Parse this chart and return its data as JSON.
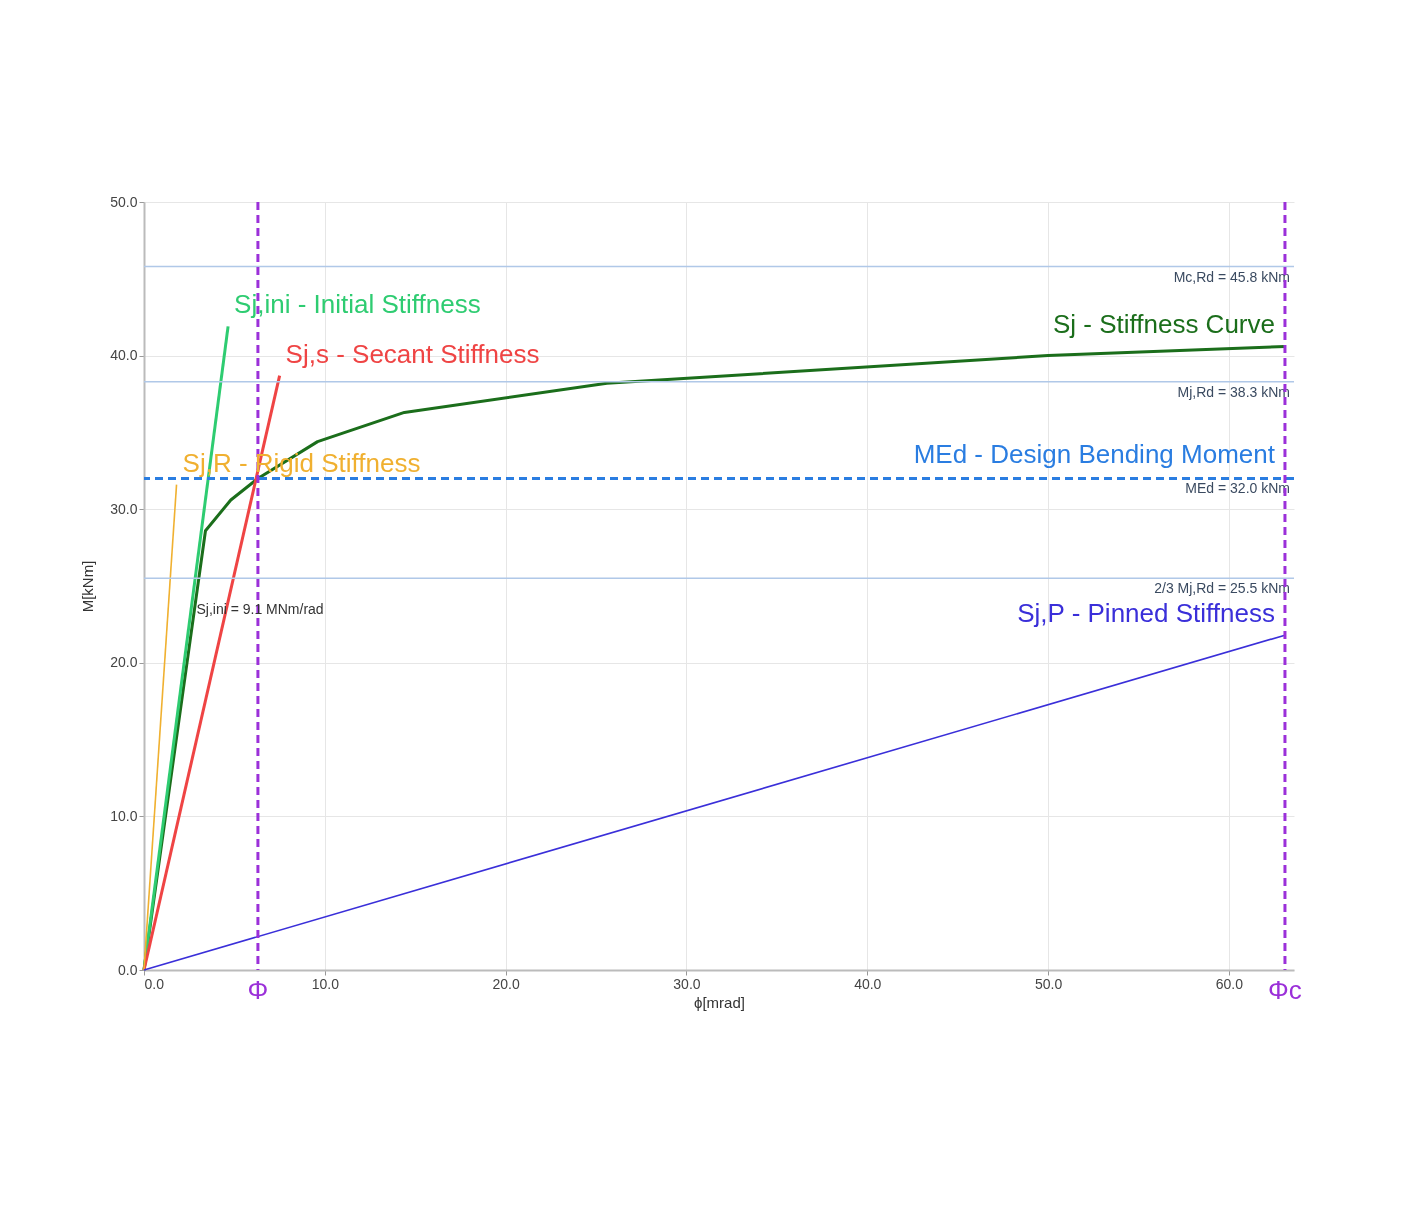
{
  "chart_data": {
    "type": "line",
    "xlabel": "ϕ[mrad]",
    "ylabel": "M[kNm]",
    "xlim": [
      0,
      63.6
    ],
    "ylim": [
      0,
      50
    ],
    "xticks": [
      {
        "value": 0,
        "label": "0.0"
      },
      {
        "value": 10,
        "label": "10.0"
      },
      {
        "value": 20,
        "label": "20.0"
      },
      {
        "value": 30,
        "label": "30.0"
      },
      {
        "value": 40,
        "label": "40.0"
      },
      {
        "value": 50,
        "label": "50.0"
      },
      {
        "value": 60,
        "label": "60.0"
      }
    ],
    "yticks": [
      {
        "value": 0,
        "label": "0.0"
      },
      {
        "value": 10,
        "label": "10.0"
      },
      {
        "value": 20,
        "label": "20.0"
      },
      {
        "value": 30,
        "label": "30.0"
      },
      {
        "value": 40,
        "label": "40.0"
      },
      {
        "value": 50,
        "label": "50.0"
      }
    ],
    "grid": true,
    "series": [
      {
        "name": "Sj - Stiffness Curve",
        "color": "#1b6e1b",
        "x": [
          0,
          3.4,
          4.8,
          6.3,
          9.6,
          14.4,
          25.6,
          50,
          63.1
        ],
        "values": [
          0,
          28.6,
          30.6,
          32.0,
          34.4,
          36.3,
          38.2,
          40.0,
          40.6
        ]
      },
      {
        "name": "Sj,ini - Initial Stiffness",
        "color": "#2ecc71",
        "x": [
          0,
          4.65
        ],
        "values": [
          0,
          41.9
        ]
      },
      {
        "name": "Sj,s - Secant Stiffness",
        "color": "#ef4444",
        "x": [
          0,
          7.5
        ],
        "values": [
          0,
          38.7
        ]
      },
      {
        "name": "Sj,R - Rigid Stiffness",
        "color": "#f0b030",
        "x": [
          0,
          1.8
        ],
        "values": [
          0,
          31.6
        ]
      },
      {
        "name": "Sj,P - Pinned Stiffness",
        "color": "#3a2fd9",
        "x": [
          0,
          63.1
        ],
        "values": [
          0,
          21.8
        ]
      }
    ],
    "ref_lines": [
      {
        "axis": "y",
        "value": 45.8,
        "label": "Mc,Rd = 45.8 kNm",
        "color": "#b0c8e8",
        "line_style": "solid"
      },
      {
        "axis": "y",
        "value": 38.3,
        "label": "Mj,Rd = 38.3 kNm",
        "color": "#b0c8e8",
        "line_style": "solid"
      },
      {
        "axis": "y",
        "value": 32.0,
        "label": "MEd = 32.0 kNm",
        "color": "#2a7de1",
        "line_style": "dashed"
      },
      {
        "axis": "y",
        "value": 25.5,
        "label": "2/3 Mj,Rd = 25.5 kNm",
        "color": "#b0c8e8",
        "line_style": "solid"
      },
      {
        "axis": "x",
        "value": 6.3,
        "label": "Φ",
        "color": "#9b30d9",
        "line_style": "dashed"
      },
      {
        "axis": "x",
        "value": 63.1,
        "label": "Φc",
        "color": "#9b30d9",
        "line_style": "dashed"
      }
    ],
    "annotations": [
      {
        "text": "MEd - Design Bending Moment",
        "x": 63.1,
        "y": 32.0
      },
      {
        "text": "Sj,ini = 9.1 MNm/rad",
        "x": 2.9,
        "y": 25.7
      }
    ]
  }
}
